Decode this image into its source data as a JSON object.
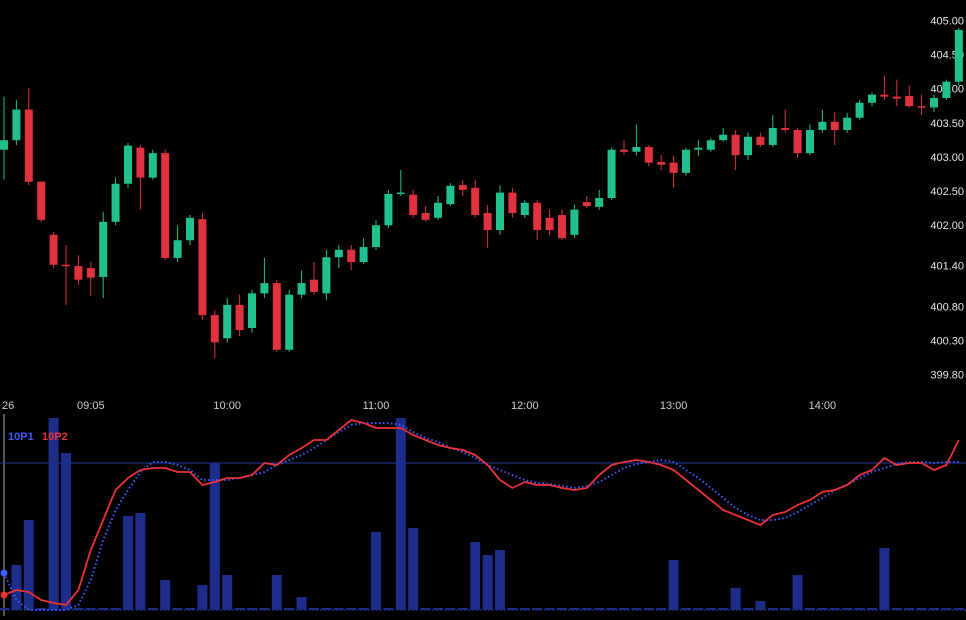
{
  "chart_data": [
    {
      "type": "candlestick",
      "categories": [
        "26",
        null,
        null,
        null,
        null,
        null,
        null,
        "09:05",
        null,
        null,
        null,
        null,
        null,
        null,
        null,
        null,
        null,
        null,
        "10:00",
        null,
        null,
        null,
        null,
        null,
        null,
        null,
        null,
        null,
        null,
        null,
        "11:00",
        null,
        null,
        null,
        null,
        null,
        null,
        null,
        null,
        null,
        null,
        null,
        "12:00",
        null,
        null,
        null,
        null,
        null,
        null,
        null,
        null,
        null,
        null,
        null,
        "13:00",
        null,
        null,
        null,
        null,
        null,
        null,
        null,
        null,
        null,
        null,
        null,
        "14:00",
        null,
        null,
        null,
        null,
        null,
        null,
        null,
        null,
        null,
        null,
        null
      ],
      "open": [
        403.12,
        403.26,
        403.71,
        402.65,
        401.87,
        401.43,
        401.41,
        401.38,
        401.25,
        402.06,
        402.62,
        403.15,
        402.71,
        403.07,
        401.53,
        401.79,
        402.1,
        400.69,
        400.35,
        400.84,
        400.5,
        401.01,
        401.16,
        400.18,
        400.99,
        401.21,
        401.01,
        401.54,
        401.65,
        401.47,
        401.69,
        402.01,
        402.47,
        402.46,
        402.19,
        402.12,
        402.32,
        402.6,
        402.56,
        402.19,
        401.94,
        402.49,
        402.16,
        402.34,
        402.12,
        402.16,
        401.87,
        402.35,
        402.28,
        402.41,
        403.12,
        403.09,
        403.16,
        402.94,
        402.93,
        402.78,
        403.12,
        403.12,
        403.26,
        403.34,
        403.04,
        403.31,
        403.19,
        403.44,
        403.41,
        403.07,
        403.41,
        403.53,
        403.41,
        403.59,
        403.81,
        403.93,
        403.9,
        403.91,
        403.76,
        403.74,
        403.88,
        404.12
      ],
      "high": [
        403.9,
        403.85,
        404.03,
        402.65,
        401.91,
        401.72,
        401.57,
        401.47,
        402.21,
        402.71,
        403.22,
        403.19,
        403.12,
        403.12,
        402.01,
        402.16,
        402.19,
        400.76,
        400.94,
        400.99,
        401.06,
        401.53,
        401.21,
        401.06,
        401.35,
        401.47,
        401.65,
        401.72,
        401.72,
        401.82,
        402.09,
        402.53,
        402.82,
        402.53,
        402.29,
        402.44,
        402.63,
        402.68,
        402.68,
        402.31,
        402.6,
        402.56,
        402.38,
        402.38,
        402.24,
        402.24,
        402.31,
        402.44,
        402.53,
        403.15,
        403.26,
        403.49,
        403.19,
        403.04,
        403.03,
        403.15,
        403.26,
        403.29,
        403.44,
        403.41,
        403.37,
        403.37,
        403.63,
        403.71,
        403.44,
        403.49,
        403.71,
        403.68,
        403.66,
        403.85,
        403.96,
        404.21,
        404.15,
        404.06,
        403.93,
        403.93,
        404.15,
        404.91
      ],
      "low": [
        402.68,
        403.19,
        402.6,
        402.06,
        401.38,
        400.84,
        401.13,
        400.97,
        400.94,
        402.01,
        402.56,
        402.24,
        402.68,
        401.5,
        401.47,
        401.72,
        400.62,
        400.06,
        400.29,
        400.38,
        400.43,
        400.94,
        400.15,
        400.15,
        400.94,
        400.99,
        400.91,
        401.38,
        401.35,
        401.44,
        401.65,
        401.97,
        402.44,
        402.12,
        402.06,
        402.09,
        402.29,
        402.44,
        402.12,
        401.68,
        401.87,
        402.12,
        402.12,
        401.79,
        401.87,
        401.79,
        401.82,
        402.26,
        402.24,
        402.38,
        403.04,
        403.04,
        402.88,
        402.82,
        402.56,
        402.74,
        403.03,
        403.09,
        403.24,
        402.82,
        402.97,
        403.16,
        403.16,
        403.37,
        403.0,
        403.04,
        403.37,
        403.19,
        403.37,
        403.56,
        403.76,
        403.85,
        403.76,
        403.74,
        403.63,
        403.68,
        403.85,
        404.07
      ],
      "close": [
        403.26,
        403.71,
        402.65,
        402.09,
        401.43,
        401.41,
        401.21,
        401.24,
        402.06,
        402.62,
        403.18,
        402.71,
        403.07,
        401.53,
        401.79,
        402.12,
        400.69,
        400.29,
        400.84,
        400.47,
        401.01,
        401.16,
        400.18,
        400.99,
        401.16,
        401.03,
        401.54,
        401.65,
        401.47,
        401.69,
        402.01,
        402.47,
        402.49,
        402.16,
        402.09,
        402.34,
        402.59,
        402.53,
        402.16,
        401.94,
        402.49,
        402.19,
        402.34,
        401.94,
        401.94,
        401.82,
        402.24,
        402.29,
        402.41,
        403.12,
        403.09,
        403.16,
        402.93,
        402.9,
        402.78,
        403.12,
        403.15,
        403.26,
        403.34,
        403.04,
        403.31,
        403.19,
        403.44,
        403.41,
        403.07,
        403.41,
        403.53,
        403.41,
        403.59,
        403.81,
        403.93,
        403.9,
        403.87,
        403.76,
        403.74,
        403.88,
        404.12,
        404.88
      ],
      "up_color": "#22c08e",
      "down_color": "#e0333f",
      "ylim": [
        399.56,
        405.32
      ],
      "yticks": [
        {
          "value": 405,
          "label": "405.00"
        },
        {
          "value": 404.5,
          "label": "404.50"
        },
        {
          "value": 404,
          "label": "404.00"
        },
        {
          "value": 403.5,
          "label": "403.50"
        },
        {
          "value": 403,
          "label": "403.00"
        },
        {
          "value": 402.5,
          "label": "402.50"
        },
        {
          "value": 402,
          "label": "402.00"
        },
        {
          "value": 401.4,
          "label": "401.40"
        },
        {
          "value": 400.8,
          "label": "400.80"
        },
        {
          "value": 400.3,
          "label": "400.30"
        },
        {
          "value": 399.8,
          "label": "399.80"
        }
      ]
    },
    {
      "type": "indicator",
      "volume": {
        "color": "#1f2d8a",
        "values": [
          2,
          45,
          90,
          2,
          192,
          157,
          2,
          2,
          2,
          2,
          94,
          97,
          2,
          30,
          2,
          2,
          25,
          147,
          35,
          2,
          2,
          2,
          35,
          2,
          13,
          2,
          2,
          2,
          2,
          2,
          78,
          2,
          192,
          82,
          2,
          2,
          2,
          2,
          68,
          55,
          60,
          2,
          2,
          2,
          2,
          2,
          2,
          2,
          2,
          2,
          2,
          2,
          2,
          2,
          50,
          2,
          2,
          2,
          2,
          22,
          2,
          9,
          2,
          2,
          35,
          2,
          2,
          2,
          2,
          2,
          2,
          62,
          2,
          2,
          2,
          2,
          2,
          2
        ]
      },
      "series": [
        {
          "name": "10P1",
          "color": "#3b5cff",
          "style": "dotted",
          "values": [
            37,
            10,
            0,
            0,
            0,
            0,
            5,
            30,
            70,
            100,
            120,
            138,
            148,
            148,
            145,
            140,
            130,
            130,
            130,
            132,
            135,
            138,
            145,
            150,
            155,
            162,
            170,
            178,
            185,
            187,
            187,
            187,
            185,
            178,
            172,
            168,
            162,
            158,
            152,
            145,
            140,
            135,
            130,
            127,
            126,
            124,
            122,
            124,
            128,
            135,
            142,
            146,
            148,
            150,
            148,
            140,
            132,
            122,
            112,
            102,
            95,
            90,
            90,
            92,
            98,
            105,
            112,
            120,
            125,
            132,
            138,
            142,
            146,
            148,
            148,
            147,
            148,
            148
          ]
        },
        {
          "name": "10P2",
          "color": "#e8333a",
          "style": "solid",
          "values": [
            15,
            20,
            18,
            10,
            7,
            5,
            20,
            60,
            90,
            120,
            132,
            140,
            142,
            142,
            138,
            138,
            125,
            128,
            132,
            132,
            135,
            147,
            145,
            155,
            162,
            170,
            170,
            180,
            190,
            187,
            182,
            182,
            182,
            175,
            170,
            165,
            162,
            160,
            155,
            145,
            130,
            122,
            128,
            125,
            125,
            122,
            120,
            122,
            135,
            145,
            148,
            150,
            148,
            145,
            140,
            130,
            120,
            110,
            100,
            95,
            90,
            85,
            95,
            98,
            105,
            110,
            118,
            120,
            125,
            135,
            140,
            152,
            145,
            147,
            147,
            140,
            145,
            170
          ]
        }
      ],
      "ylim": [
        0,
        195
      ],
      "reference_line": 147
    }
  ]
}
